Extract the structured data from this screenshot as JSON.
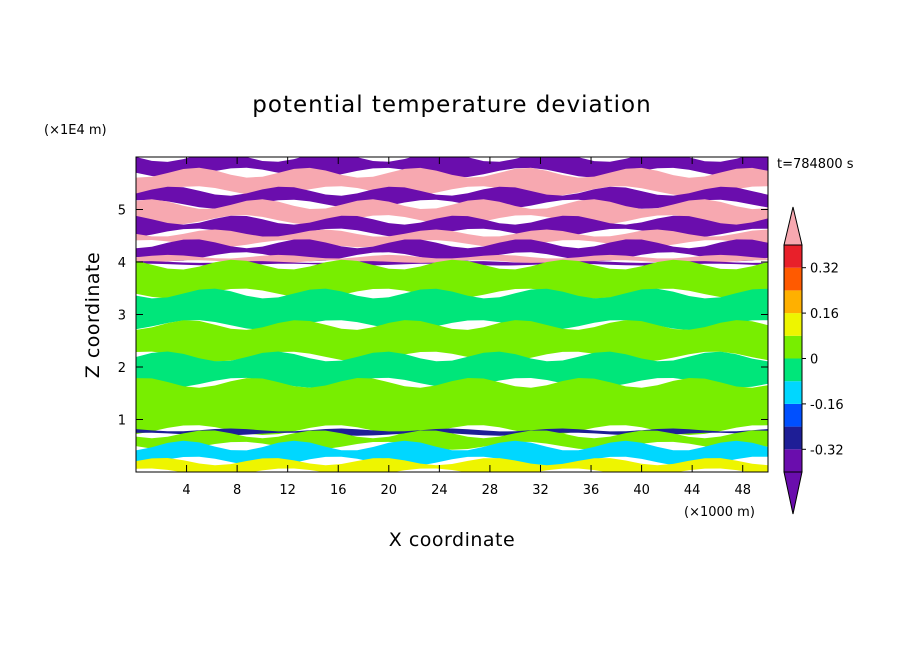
{
  "chart_data": {
    "type": "heatmap",
    "title": "potential temperature deviation",
    "time_label": "t=784800 s",
    "xlabel": "X coordinate",
    "ylabel": "Z coordinate",
    "x_unit": "(×1000 m)",
    "y_unit": "(×1E4 m)",
    "xlim": [
      0,
      50
    ],
    "ylim": [
      0,
      6
    ],
    "x_ticks": [
      4,
      8,
      12,
      16,
      20,
      24,
      28,
      32,
      36,
      40,
      44,
      48
    ],
    "y_ticks": [
      1,
      2,
      3,
      4,
      5
    ],
    "colorbar": {
      "levels": [
        -0.4,
        -0.32,
        -0.24,
        -0.16,
        -0.08,
        0,
        0.08,
        0.16,
        0.24,
        0.32,
        0.4
      ],
      "labels": [
        "0.32",
        "0.16",
        "0",
        "-0.16",
        "-0.32"
      ],
      "label_values": [
        0.32,
        0.16,
        0,
        -0.16,
        -0.32
      ],
      "colors": [
        "#6a0dad",
        "#1e1e96",
        "#0050ff",
        "#00d7ff",
        "#00e67a",
        "#78ee00",
        "#eef500",
        "#ffb000",
        "#ff5a00",
        "#e8202a"
      ],
      "under_color": "#6a0dad",
      "over_color": "#f7a8b0",
      "extend": "both"
    },
    "bands": [
      {
        "z": [
          5.7,
          6.0
        ],
        "value": -0.45
      },
      {
        "z": [
          5.35,
          5.7
        ],
        "value": 0.45
      },
      {
        "z": [
          5.1,
          5.35
        ],
        "value": -0.45
      },
      {
        "z": [
          4.8,
          5.1
        ],
        "value": 0.45
      },
      {
        "z": [
          4.55,
          4.8
        ],
        "value": -0.45
      },
      {
        "z": [
          4.35,
          4.55
        ],
        "value": 0.45
      },
      {
        "z": [
          4.1,
          4.35
        ],
        "value": -0.45
      },
      {
        "z": [
          4.0,
          4.1
        ],
        "value": 0.45
      },
      {
        "z": [
          3.95,
          4.0
        ],
        "value": -0.35
      },
      {
        "z": [
          3.4,
          3.95
        ],
        "value": 0.02
      },
      {
        "z": [
          2.8,
          3.4
        ],
        "value": -0.02
      },
      {
        "z": [
          2.2,
          2.8
        ],
        "value": 0.02
      },
      {
        "z": [
          1.7,
          2.2
        ],
        "value": -0.02
      },
      {
        "z": [
          0.8,
          1.7
        ],
        "value": 0.02
      },
      {
        "z": [
          0.72,
          0.8
        ],
        "value": -0.3
      },
      {
        "z": [
          0.5,
          0.72
        ],
        "value": 0.02
      },
      {
        "z": [
          0.2,
          0.5
        ],
        "value": -0.1
      },
      {
        "z": [
          0.0,
          0.2
        ],
        "value": 0.08
      }
    ]
  }
}
